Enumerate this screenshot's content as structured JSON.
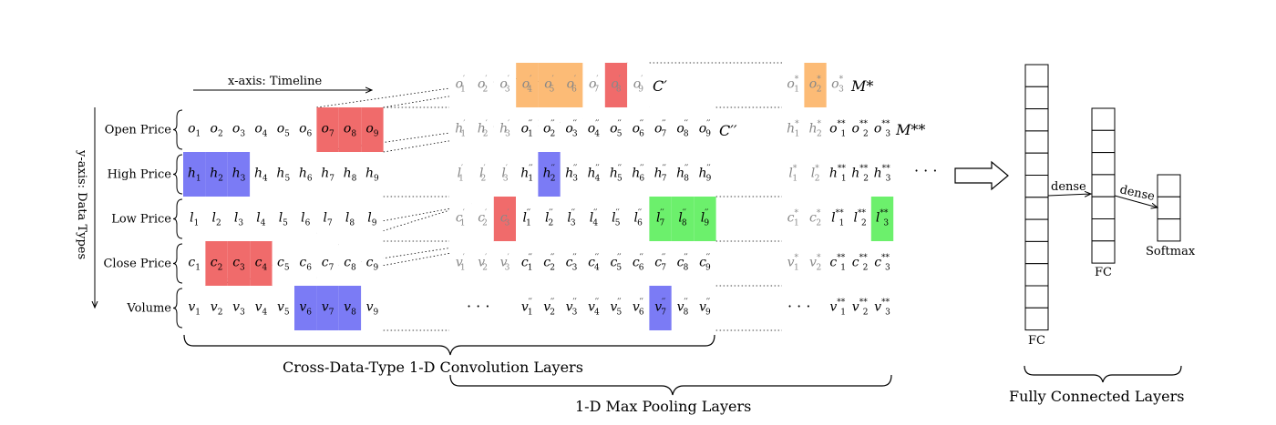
{
  "x_axis_label": "x-axis: Timeline",
  "y_axis_label": "y-axis: Data Types",
  "row_labels": [
    "Open Price",
    "High Price",
    "Low Price",
    "Close Price",
    "Volume"
  ],
  "input_rows": [
    {
      "letter": "o",
      "highlight": [
        7,
        8,
        9
      ],
      "color": "red"
    },
    {
      "letter": "h",
      "highlight": [
        1,
        2,
        3
      ],
      "color": "blue"
    },
    {
      "letter": "l",
      "highlight": [],
      "color": ""
    },
    {
      "letter": "c",
      "highlight": [
        2,
        3,
        4
      ],
      "color": "red"
    },
    {
      "letter": "v",
      "highlight": [
        6,
        7,
        8
      ],
      "color": "blue"
    }
  ],
  "conv_gray_rows": [
    {
      "letter": "o",
      "mark": "′"
    },
    {
      "letter": "h",
      "mark": "′"
    },
    {
      "letter": "l",
      "mark": "′"
    },
    {
      "letter": "c",
      "mark": "′"
    },
    {
      "letter": "v",
      "mark": "′"
    }
  ],
  "conv_top_highlight": {
    "orange": [
      4,
      5,
      6
    ],
    "red": [
      8
    ]
  },
  "conv_c3_red": true,
  "conv_rows": [
    {
      "letter": "o",
      "highlight": [],
      "color": ""
    },
    {
      "letter": "h",
      "highlight": [
        2
      ],
      "color": "blue"
    },
    {
      "letter": "l",
      "highlight": [
        7,
        8,
        9
      ],
      "color": "green"
    },
    {
      "letter": "c",
      "highlight": [],
      "color": ""
    },
    {
      "letter": "v",
      "highlight": [
        7
      ],
      "color": "blue"
    }
  ],
  "conv_label_top": "C′",
  "conv_label": "C′′",
  "pool_gray_rows": [
    {
      "letter": "o",
      "mark": "*"
    },
    {
      "letter": "h",
      "mark": "*"
    },
    {
      "letter": "l",
      "mark": "*"
    },
    {
      "letter": "c",
      "mark": "*"
    },
    {
      "letter": "v",
      "mark": "*"
    }
  ],
  "pool_top_orange": [
    2
  ],
  "pool_rows": [
    {
      "letter": "o",
      "highlight": [],
      "color": ""
    },
    {
      "letter": "h",
      "highlight": [],
      "color": ""
    },
    {
      "letter": "l",
      "highlight": [
        3
      ],
      "color": "green"
    },
    {
      "letter": "c",
      "highlight": [],
      "color": ""
    },
    {
      "letter": "v",
      "highlight": [],
      "color": ""
    }
  ],
  "pool_label_top": "M*",
  "pool_label": "M**",
  "ellipsis": "· · ·",
  "fc_label_1": "FC",
  "fc_label_2": "FC",
  "softmax_label": "Softmax",
  "dense_label_1": "dense",
  "dense_label_2": "dense",
  "brace_conv": "Cross-Data-Type 1-D Convolution Layers",
  "brace_pool": "1-D Max Pooling Layers",
  "brace_fc": "Fully Connected Layers",
  "colors": {
    "red": "#f06b6b",
    "blue": "#7b7bf5",
    "green": "#6cf06c",
    "orange": "#fcbb76",
    "gray": "#888888"
  }
}
